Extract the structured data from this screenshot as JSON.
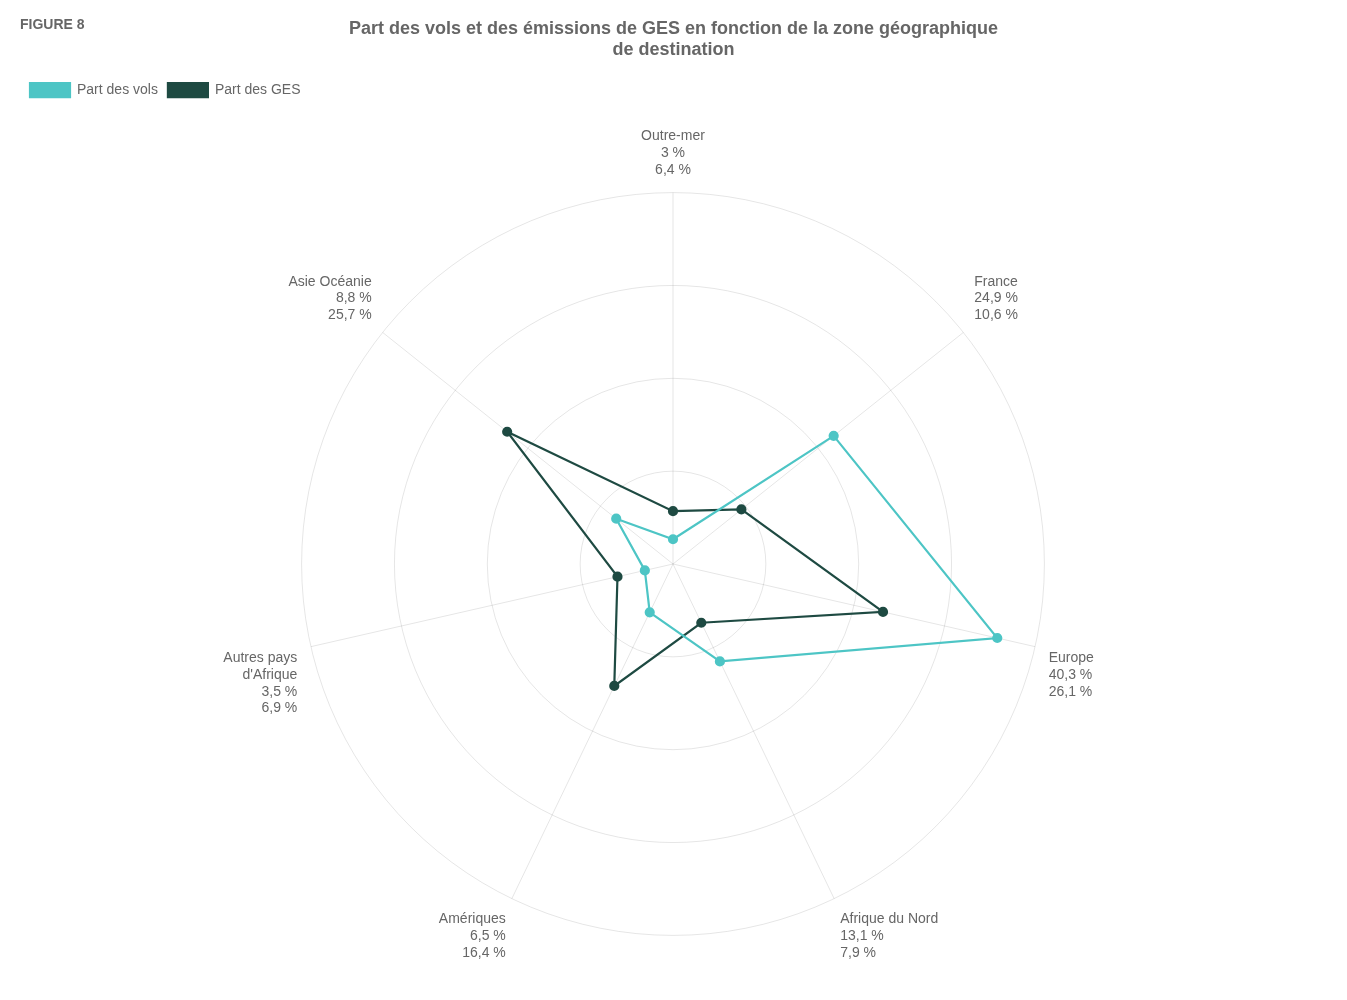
{
  "chart_data": {
    "type": "radar",
    "title": [
      "Part des vols et des émissions de GES en fonction de la zone géographique",
      "de destination"
    ],
    "annotations": [
      "FIGURE 8"
    ],
    "categories": [
      "Outre-mer",
      "France",
      "Europe",
      "Afrique du Nord",
      "Amériques",
      "Autres pays\nd'Afrique",
      "Asie Océanie"
    ],
    "series": [
      {
        "name": "Part des vols",
        "color": "#4dc5c5",
        "values": [
          3.0,
          24.9,
          40.3,
          13.1,
          6.5,
          3.5,
          8.8
        ],
        "value_labels": [
          "3 %",
          "24,9 %",
          "40,3 %",
          "13,1 %",
          "6,5 %",
          "3,5 %",
          "8,8 %"
        ]
      },
      {
        "name": "Part des GES",
        "color": "#1e4a42",
        "values": [
          6.4,
          10.6,
          26.1,
          7.9,
          16.4,
          6.9,
          25.7
        ],
        "value_labels": [
          "6,4 %",
          "10,6 %",
          "26,1 %",
          "7,9 %",
          "16,4 %",
          "6,9 %",
          "25,7 %"
        ]
      }
    ],
    "ylim": [
      0,
      45
    ],
    "yticks": [
      0,
      11.25,
      22.5,
      33.75,
      45
    ],
    "grid": true,
    "legend": "upper left",
    "tick_labels": false,
    "data_labels": true,
    "marker": "circle"
  }
}
